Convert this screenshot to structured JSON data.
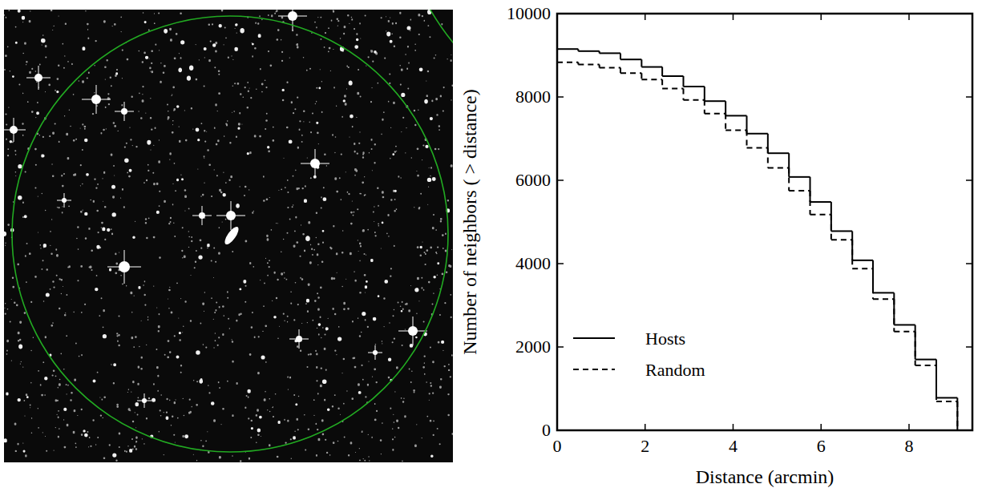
{
  "chart_data": {
    "type": "histogram",
    "x_label": "Distance (arcmin)",
    "y_label": "Number of neighbors ( > distance)",
    "bins": [
      0,
      0.48,
      0.96,
      1.44,
      1.92,
      2.39,
      2.87,
      3.35,
      3.83,
      4.31,
      4.79,
      5.27,
      5.75,
      6.23,
      6.71,
      7.18,
      7.66,
      8.14,
      8.62,
      9.1
    ],
    "series": [
      {
        "name": "Hosts",
        "color": "#000000",
        "line_style": "solid",
        "values": [
          9150,
          9100,
          9050,
          8900,
          8720,
          8500,
          8250,
          7900,
          7550,
          7120,
          6650,
          6080,
          5480,
          4780,
          4080,
          3300,
          2530,
          1700,
          780
        ]
      },
      {
        "name": "Random",
        "color": "#000000",
        "line_style": "dashed",
        "values": [
          8830,
          8780,
          8700,
          8570,
          8420,
          8200,
          7930,
          7600,
          7200,
          6780,
          6300,
          5750,
          5180,
          4570,
          3880,
          3150,
          2370,
          1560,
          690
        ]
      }
    ],
    "xlim": [
      0,
      9.44
    ],
    "xticks": [
      0,
      2,
      4,
      6,
      8
    ],
    "ylim": [
      0,
      10000
    ],
    "yticks": [
      0,
      2000,
      4000,
      6000,
      8000,
      10000
    ],
    "grid": false,
    "legend": "lower left"
  }
}
